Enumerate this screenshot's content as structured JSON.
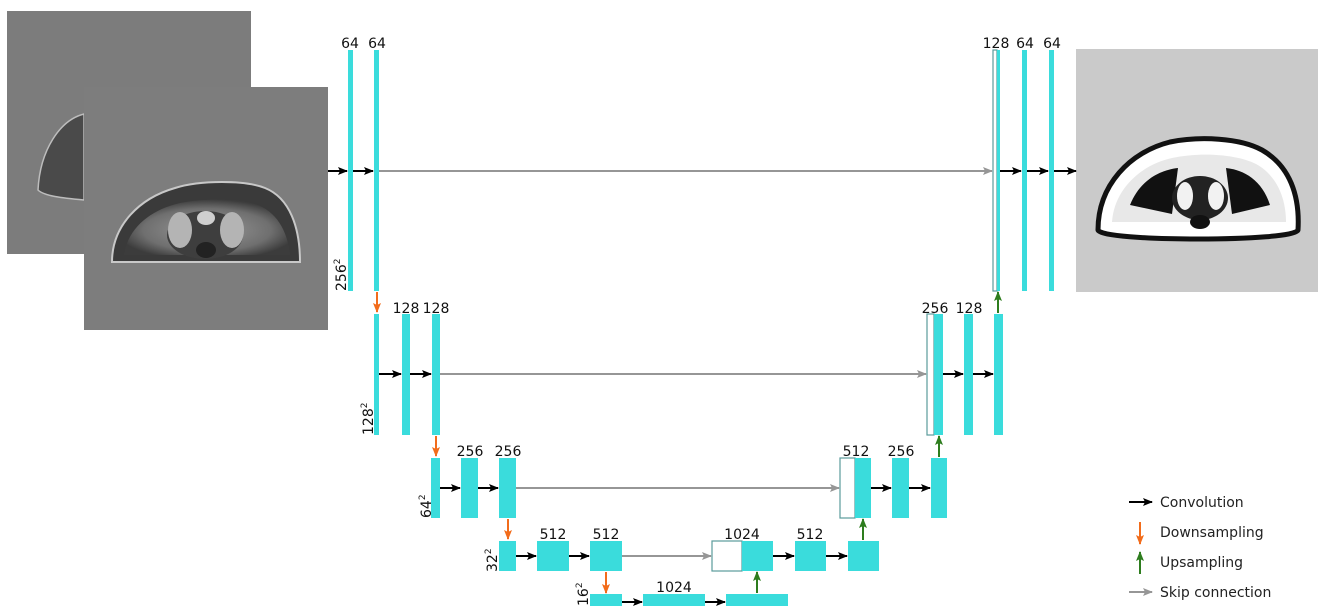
{
  "diagram": {
    "channel_labels": {
      "l1a": "64",
      "l1b": "64",
      "l1d_cat": "128",
      "l1d_a": "64",
      "l1d_b": "64",
      "l2a": "128",
      "l2b": "128",
      "l2d_cat": "256",
      "l2d_a": "128",
      "l3a": "256",
      "l3b": "256",
      "l3d_cat": "512",
      "l3d_a": "256",
      "l4a": "512",
      "l4b": "512",
      "l4d_cat": "1024",
      "l4d_a": "512",
      "l5": "1024"
    },
    "resolution_labels": {
      "r1": "256",
      "r2": "128",
      "r3": "64",
      "r4": "32",
      "r5": "16",
      "exp": "2"
    },
    "legend": [
      {
        "key": "conv",
        "label": "Convolution",
        "color": "#000000"
      },
      {
        "key": "down",
        "label": "Downsampling",
        "color": "#f26c1b"
      },
      {
        "key": "up",
        "label": "Upsampling",
        "color": "#2e7d1e"
      },
      {
        "key": "skip",
        "label": "Skip connection",
        "color": "#969696"
      }
    ],
    "colors": {
      "feature_map": "#3adcdc",
      "concat_outline": "#5a9b9b",
      "conv": "#000000",
      "down": "#f26c1b",
      "up": "#2e7d1e",
      "skip": "#969696"
    }
  }
}
